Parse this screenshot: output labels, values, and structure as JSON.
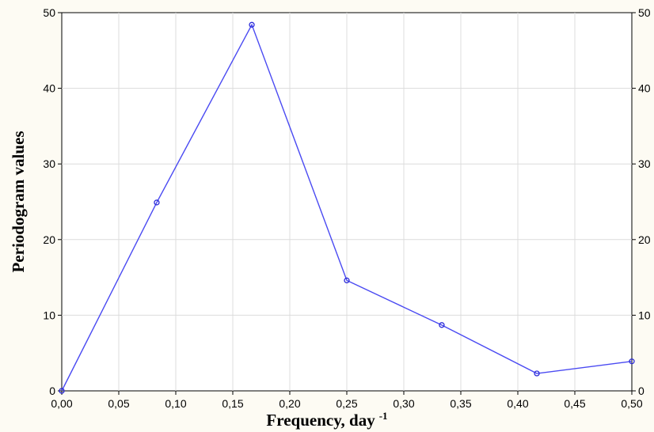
{
  "chart_data": {
    "type": "line",
    "title": "",
    "xlabel": "Frequency, day",
    "xlabel_superscript": "-1",
    "ylabel": "Periodogram values",
    "xlim": [
      0,
      0.5
    ],
    "ylim": [
      0,
      50
    ],
    "x_ticks": [
      "0,00",
      "0,05",
      "0,10",
      "0,15",
      "0,20",
      "0,25",
      "0,30",
      "0,35",
      "0,40",
      "0,45",
      "0,50"
    ],
    "y_ticks": [
      "0",
      "10",
      "20",
      "30",
      "40",
      "50"
    ],
    "grid": true,
    "line_color": "#4a4af2",
    "series": [
      {
        "x": [
          0.0,
          0.0833,
          0.1667,
          0.25,
          0.3333,
          0.4167,
          0.5
        ],
        "y": [
          0.0,
          24.9,
          48.4,
          14.6,
          8.7,
          2.3,
          3.9
        ]
      }
    ]
  }
}
